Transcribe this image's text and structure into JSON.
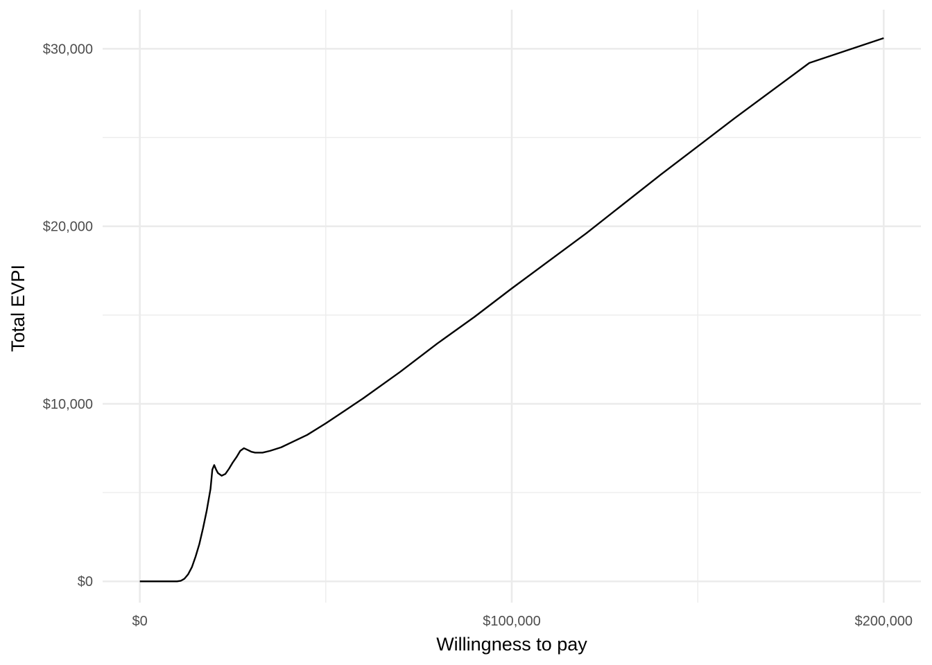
{
  "chart_data": {
    "type": "line",
    "title": "",
    "xlabel": "Willingness to pay",
    "ylabel": "Total EVPI",
    "xlim": [
      -10000,
      210000
    ],
    "ylim": [
      -1200,
      32200
    ],
    "x_ticks": [
      {
        "value": 0,
        "label": "$0"
      },
      {
        "value": 100000,
        "label": "$100,000"
      },
      {
        "value": 200000,
        "label": "$200,000"
      }
    ],
    "x_minor_ticks": [
      50000,
      150000
    ],
    "y_ticks": [
      {
        "value": 0,
        "label": "$0"
      },
      {
        "value": 10000,
        "label": "$10,000"
      },
      {
        "value": 20000,
        "label": "$20,000"
      },
      {
        "value": 30000,
        "label": "$30,000"
      }
    ],
    "y_minor_ticks": [
      5000,
      15000,
      25000
    ],
    "grid": true,
    "legend": "none",
    "colors": {
      "line": "#000000",
      "grid": "#ebebeb",
      "tick_text": "#4d4d4d"
    },
    "series": [
      {
        "x": [
          0,
          5000,
          10000,
          11000,
          12000,
          13000,
          14000,
          15000,
          16000,
          17000,
          18000,
          19000,
          19500,
          20000,
          20500,
          21000,
          22000,
          23000,
          24000,
          25000,
          26000,
          27000,
          28000,
          29000,
          29500,
          30000,
          31000,
          33000,
          35000,
          38000,
          41000,
          45000,
          50000,
          55000,
          60000,
          70000,
          80000,
          90000,
          100000,
          120000,
          140000,
          160000,
          180000,
          200000
        ],
        "y": [
          0,
          0,
          0,
          30,
          150,
          400,
          800,
          1400,
          2100,
          3000,
          4000,
          5200,
          6300,
          6550,
          6300,
          6100,
          5950,
          6050,
          6350,
          6700,
          7000,
          7350,
          7500,
          7400,
          7350,
          7300,
          7250,
          7250,
          7350,
          7550,
          7850,
          8250,
          8900,
          9600,
          10300,
          11800,
          13400,
          14900,
          16500,
          19600,
          22900,
          26100,
          29200,
          30600
        ]
      }
    ]
  }
}
